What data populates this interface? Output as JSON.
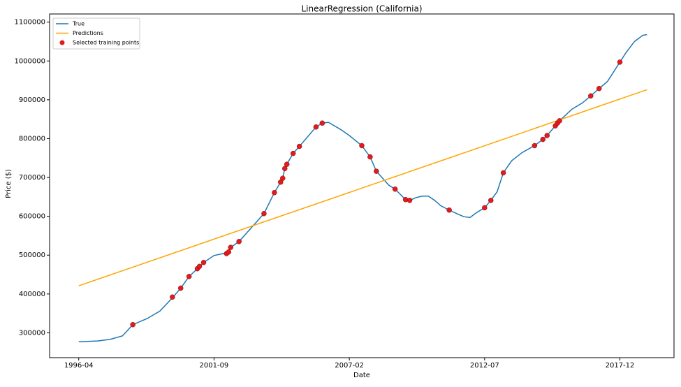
{
  "chart_data": {
    "type": "line",
    "title": "LinearRegression (California)",
    "x_label": "Date",
    "y_label": "Price ($)",
    "xlim": [
      "1995-02",
      "2020-02"
    ],
    "xticks": [
      "1996-04",
      "2001-09",
      "2007-02",
      "2012-07",
      "2017-12"
    ],
    "ylim": [
      236000,
      1121000
    ],
    "yticks": [
      300000,
      400000,
      500000,
      600000,
      700000,
      800000,
      900000,
      1000000,
      1100000
    ],
    "grid": false,
    "legend": "upper left",
    "series": [
      {
        "name": "True",
        "color": "#1f77b4",
        "type": "line",
        "x": [
          "1996-04",
          "1997-01",
          "1997-07",
          "1998-01",
          "1998-06",
          "1999-01",
          "1999-07",
          "2000-01",
          "2000-05",
          "2000-09",
          "2001-01",
          "2001-04",
          "2001-09",
          "2002-03",
          "2002-05",
          "2002-09",
          "2003-09",
          "2004-02",
          "2004-05",
          "2004-06",
          "2004-07",
          "2004-08",
          "2004-11",
          "2005-02",
          "2005-10",
          "2006-01",
          "2006-04",
          "2006-10",
          "2007-02",
          "2007-08",
          "2007-12",
          "2008-03",
          "2008-09",
          "2008-12",
          "2009-05",
          "2009-07",
          "2009-10",
          "2010-01",
          "2010-04",
          "2010-07",
          "2010-10",
          "2011-02",
          "2011-06",
          "2011-09",
          "2011-12",
          "2012-03",
          "2012-07",
          "2012-10",
          "2013-01",
          "2013-04",
          "2013-08",
          "2014-01",
          "2014-07",
          "2014-11",
          "2015-01",
          "2015-05",
          "2015-06",
          "2015-07",
          "2016-01",
          "2016-06",
          "2016-10",
          "2017-02",
          "2017-06",
          "2017-12",
          "2018-03",
          "2018-07",
          "2018-11",
          "2019-01"
        ],
        "values": [
          277000,
          279000,
          283000,
          292000,
          321000,
          337000,
          356000,
          390000,
          415000,
          445000,
          465000,
          481000,
          499000,
          506000,
          520000,
          535000,
          607000,
          661000,
          688000,
          698000,
          723000,
          734000,
          762000,
          780000,
          830000,
          840000,
          842000,
          823000,
          808000,
          782000,
          753000,
          716000,
          680000,
          670000,
          643000,
          641000,
          648000,
          652000,
          652000,
          641000,
          627000,
          616000,
          606000,
          599000,
          597000,
          609000,
          622000,
          641000,
          663000,
          712000,
          743000,
          764000,
          782000,
          798000,
          808000,
          833000,
          840000,
          846000,
          876000,
          892000,
          910000,
          929000,
          947000,
          997000,
          1022000,
          1050000,
          1066000,
          1068000
        ]
      },
      {
        "name": "Predictions",
        "color": "#ffa500",
        "type": "line",
        "x": [
          "1996-04",
          "2019-01"
        ],
        "values": [
          421000,
          926000
        ]
      },
      {
        "name": "Selected training points",
        "color": "#e41a1c",
        "type": "scatter",
        "x": [
          "1998-06",
          "2000-01",
          "2000-05",
          "2000-09",
          "2001-01",
          "2001-02",
          "2001-04",
          "2002-03",
          "2002-04",
          "2002-05",
          "2002-09",
          "2003-09",
          "2004-02",
          "2004-05",
          "2004-06",
          "2004-07",
          "2004-08",
          "2004-11",
          "2005-02",
          "2005-10",
          "2006-01",
          "2007-08",
          "2007-12",
          "2008-03",
          "2008-12",
          "2009-05",
          "2009-07",
          "2011-02",
          "2012-07",
          "2012-10",
          "2013-04",
          "2014-07",
          "2014-11",
          "2015-01",
          "2015-05",
          "2015-06",
          "2015-07",
          "2016-10",
          "2017-02",
          "2017-12"
        ],
        "values": [
          321000,
          392000,
          415000,
          445000,
          465000,
          471000,
          481000,
          504000,
          508000,
          520000,
          535000,
          607000,
          661000,
          688000,
          698000,
          723000,
          734000,
          762000,
          780000,
          830000,
          840000,
          782000,
          753000,
          716000,
          670000,
          643000,
          641000,
          616000,
          622000,
          641000,
          712000,
          782000,
          798000,
          808000,
          833000,
          840000,
          846000,
          910000,
          929000,
          997000
        ]
      }
    ]
  }
}
